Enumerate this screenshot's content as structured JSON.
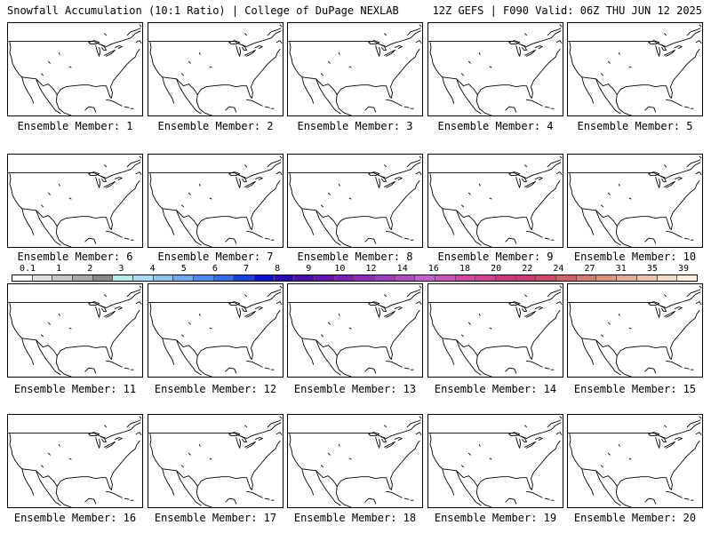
{
  "header": {
    "left": "Snowfall Accumulation (10:1 Ratio) | College of DuPage NEXLAB",
    "right": "12Z GEFS | F090 Valid: 06Z THU JUN 12 2025"
  },
  "panels": [
    {
      "label": "Ensemble Member: 1"
    },
    {
      "label": "Ensemble Member: 2"
    },
    {
      "label": "Ensemble Member: 3"
    },
    {
      "label": "Ensemble Member: 4"
    },
    {
      "label": "Ensemble Member: 5"
    },
    {
      "label": "Ensemble Member: 6"
    },
    {
      "label": "Ensemble Member: 7"
    },
    {
      "label": "Ensemble Member: 8"
    },
    {
      "label": "Ensemble Member: 9"
    },
    {
      "label": "Ensemble Member: 10"
    },
    {
      "label": "Ensemble Member: 11"
    },
    {
      "label": "Ensemble Member: 12"
    },
    {
      "label": "Ensemble Member: 13"
    },
    {
      "label": "Ensemble Member: 14"
    },
    {
      "label": "Ensemble Member: 15"
    },
    {
      "label": "Ensemble Member: 16"
    },
    {
      "label": "Ensemble Member: 17"
    },
    {
      "label": "Ensemble Member: 18"
    },
    {
      "label": "Ensemble Member: 19"
    },
    {
      "label": "Ensemble Member: 20"
    }
  ],
  "colorbar": {
    "tick_labels": [
      "0.1",
      "1",
      "2",
      "3",
      "4",
      "5",
      "6",
      "7",
      "8",
      "9",
      "10",
      "12",
      "14",
      "16",
      "18",
      "20",
      "22",
      "24",
      "27",
      "31",
      "35",
      "39"
    ],
    "colors": [
      "#ffffff",
      "#e0e0e0",
      "#c8c8c8",
      "#a8a8a8",
      "#888888",
      "#b4ecec",
      "#a8dcf4",
      "#8cc4f0",
      "#6ca8ec",
      "#4c8ce8",
      "#2c70e4",
      "#1444e0",
      "#0c14d4",
      "#2c0cb0",
      "#4c0ca8",
      "#6414a8",
      "#7c1cb0",
      "#8c2cb8",
      "#a03cc0",
      "#b44cc8",
      "#c85cd0",
      "#cc54bc",
      "#d048a8",
      "#d04094",
      "#cc3880",
      "#c83c70",
      "#cc4c68",
      "#d06464",
      "#d47c70",
      "#dc9480",
      "#e4ac94",
      "#ecc4ac",
      "#f4dcc4",
      "#fcecdc"
    ]
  }
}
